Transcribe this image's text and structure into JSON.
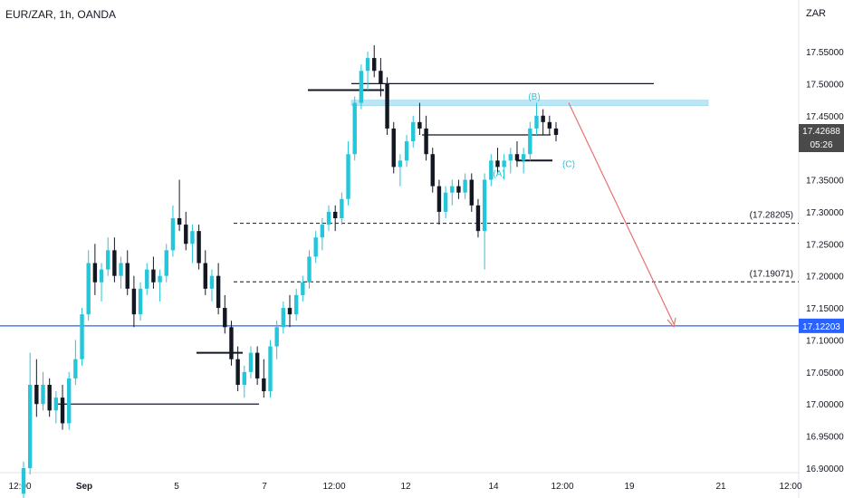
{
  "chart_data": {
    "type": "candlestick",
    "title": "EUR/ZAR, 1h, OANDA",
    "currency": "ZAR",
    "ylim": [
      16.9,
      17.6
    ],
    "y_ticks": [
      "17.55000",
      "17.50000",
      "17.45000",
      "17.40000",
      "17.35000",
      "17.30000",
      "17.25000",
      "17.20000",
      "17.15000",
      "17.10000",
      "17.05000",
      "17.00000",
      "16.95000",
      "16.90000"
    ],
    "x_ticks": [
      "12:00",
      "Sep",
      "5",
      "7",
      "12:00",
      "12",
      "14",
      "12:00",
      "19",
      "21",
      "12:00"
    ],
    "bull_color": "#26c6da",
    "bear_color": "#131722",
    "candles": [
      [
        16.86,
        16.91,
        16.85,
        16.9
      ],
      [
        16.9,
        17.08,
        16.89,
        17.03
      ],
      [
        17.03,
        17.07,
        16.98,
        17.0
      ],
      [
        17.0,
        17.05,
        16.99,
        17.03
      ],
      [
        17.03,
        17.04,
        16.98,
        16.99
      ],
      [
        16.99,
        17.02,
        16.97,
        17.01
      ],
      [
        17.01,
        17.03,
        16.96,
        16.97
      ],
      [
        16.97,
        17.05,
        16.96,
        17.04
      ],
      [
        17.04,
        17.1,
        17.03,
        17.07
      ],
      [
        17.07,
        17.15,
        17.06,
        17.14
      ],
      [
        17.14,
        17.24,
        17.13,
        17.22
      ],
      [
        17.22,
        17.25,
        17.17,
        17.19
      ],
      [
        17.19,
        17.22,
        17.16,
        17.21
      ],
      [
        17.21,
        17.26,
        17.2,
        17.24
      ],
      [
        17.24,
        17.26,
        17.19,
        17.2
      ],
      [
        17.2,
        17.23,
        17.18,
        17.22
      ],
      [
        17.22,
        17.24,
        17.17,
        17.18
      ],
      [
        17.18,
        17.2,
        17.12,
        17.14
      ],
      [
        17.14,
        17.19,
        17.13,
        17.18
      ],
      [
        17.18,
        17.22,
        17.17,
        17.21
      ],
      [
        17.21,
        17.23,
        17.18,
        17.19
      ],
      [
        17.19,
        17.21,
        17.16,
        17.2
      ],
      [
        17.2,
        17.25,
        17.19,
        17.24
      ],
      [
        17.24,
        17.31,
        17.23,
        17.29
      ],
      [
        17.29,
        17.35,
        17.27,
        17.28
      ],
      [
        17.28,
        17.3,
        17.24,
        17.25
      ],
      [
        17.25,
        17.28,
        17.22,
        17.27
      ],
      [
        17.27,
        17.28,
        17.21,
        17.22
      ],
      [
        17.22,
        17.24,
        17.17,
        17.18
      ],
      [
        17.18,
        17.21,
        17.16,
        17.2
      ],
      [
        17.2,
        17.22,
        17.14,
        17.15
      ],
      [
        17.15,
        17.17,
        17.11,
        17.12
      ],
      [
        17.12,
        17.13,
        17.06,
        17.07
      ],
      [
        17.07,
        17.09,
        17.02,
        17.03
      ],
      [
        17.03,
        17.06,
        17.01,
        17.05
      ],
      [
        17.05,
        17.09,
        17.04,
        17.08
      ],
      [
        17.08,
        17.09,
        17.03,
        17.04
      ],
      [
        17.04,
        17.07,
        17.01,
        17.02
      ],
      [
        17.02,
        17.1,
        17.01,
        17.09
      ],
      [
        17.09,
        17.13,
        17.07,
        17.12
      ],
      [
        17.12,
        17.16,
        17.11,
        17.15
      ],
      [
        17.15,
        17.17,
        17.12,
        17.14
      ],
      [
        17.14,
        17.18,
        17.13,
        17.17
      ],
      [
        17.17,
        17.2,
        17.16,
        17.19
      ],
      [
        17.19,
        17.24,
        17.18,
        17.23
      ],
      [
        17.23,
        17.27,
        17.22,
        17.26
      ],
      [
        17.26,
        17.29,
        17.24,
        17.28
      ],
      [
        17.28,
        17.31,
        17.27,
        17.3
      ],
      [
        17.3,
        17.31,
        17.27,
        17.29
      ],
      [
        17.29,
        17.33,
        17.28,
        17.32
      ],
      [
        17.32,
        17.41,
        17.31,
        17.39
      ],
      [
        17.39,
        17.48,
        17.38,
        17.47
      ],
      [
        17.47,
        17.53,
        17.46,
        17.52
      ],
      [
        17.52,
        17.55,
        17.49,
        17.54
      ],
      [
        17.54,
        17.56,
        17.51,
        17.52
      ],
      [
        17.52,
        17.54,
        17.48,
        17.5
      ],
      [
        17.5,
        17.51,
        17.42,
        17.43
      ],
      [
        17.43,
        17.44,
        17.36,
        17.37
      ],
      [
        17.37,
        17.39,
        17.34,
        17.38
      ],
      [
        17.38,
        17.42,
        17.37,
        17.41
      ],
      [
        17.41,
        17.45,
        17.4,
        17.44
      ],
      [
        17.44,
        17.47,
        17.42,
        17.43
      ],
      [
        17.43,
        17.45,
        17.38,
        17.39
      ],
      [
        17.39,
        17.4,
        17.33,
        17.34
      ],
      [
        17.34,
        17.35,
        17.28,
        17.3
      ],
      [
        17.3,
        17.34,
        17.29,
        17.33
      ],
      [
        17.33,
        17.35,
        17.31,
        17.34
      ],
      [
        17.34,
        17.35,
        17.32,
        17.33
      ],
      [
        17.33,
        17.36,
        17.32,
        17.35
      ],
      [
        17.35,
        17.36,
        17.3,
        17.31
      ],
      [
        17.31,
        17.32,
        17.26,
        17.27
      ],
      [
        17.27,
        17.36,
        17.21,
        17.35
      ],
      [
        17.35,
        17.39,
        17.34,
        17.38
      ],
      [
        17.38,
        17.4,
        17.36,
        17.37
      ],
      [
        17.37,
        17.39,
        17.35,
        17.38
      ],
      [
        17.38,
        17.4,
        17.36,
        17.39
      ],
      [
        17.39,
        17.41,
        17.37,
        17.38
      ],
      [
        17.38,
        17.4,
        17.36,
        17.39
      ],
      [
        17.39,
        17.44,
        17.38,
        17.43
      ],
      [
        17.43,
        17.47,
        17.42,
        17.45
      ],
      [
        17.45,
        17.46,
        17.42,
        17.44
      ],
      [
        17.44,
        17.45,
        17.42,
        17.43
      ],
      [
        17.43,
        17.44,
        17.41,
        17.42
      ]
    ],
    "horizontal_levels": [
      {
        "price": 17.28205,
        "label": "(17.28205)",
        "style": "dashed"
      },
      {
        "price": 17.19071,
        "label": "(17.19071)",
        "style": "dashed"
      },
      {
        "price": 17.12203,
        "label": "17.12203",
        "style": "solid",
        "color": "#2962ff"
      }
    ],
    "wave_labels": [
      "(B)",
      "(A)",
      "(C)"
    ],
    "last_price": "17.42688",
    "countdown": "05:26"
  }
}
